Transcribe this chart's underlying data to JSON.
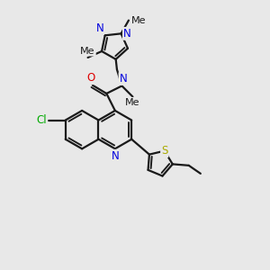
{
  "background_color": "#e8e8e8",
  "bond_color": "#1a1a1a",
  "bond_width": 1.6,
  "atom_colors": {
    "N": "#0000dd",
    "O": "#dd0000",
    "S": "#aaaa00",
    "Cl": "#00aa00",
    "C": "#1a1a1a"
  },
  "font_size": 8.5,
  "xlim": [
    0,
    10
  ],
  "ylim": [
    0,
    10
  ]
}
